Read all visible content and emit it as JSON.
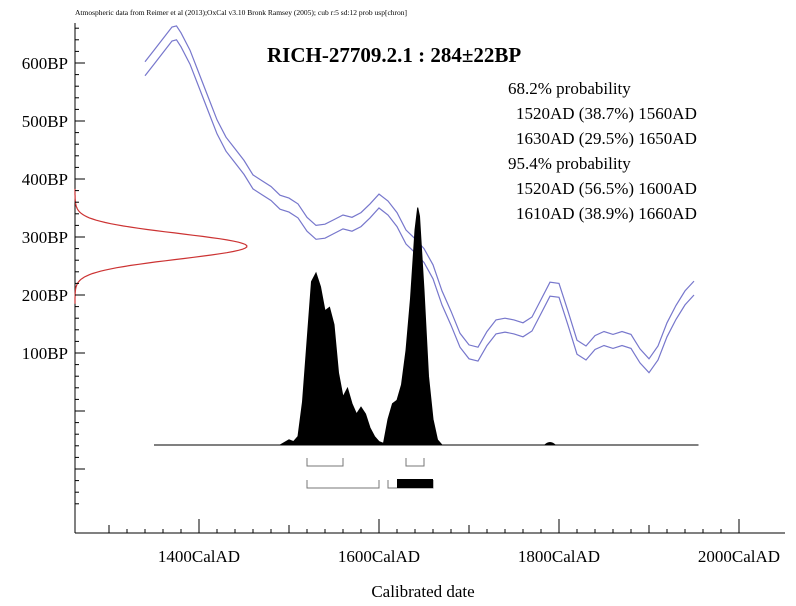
{
  "chart_data": {
    "type": "area",
    "credit": "Atmospheric data from Reimer et al (2013);OxCal v3.10 Bronk Ramsey (2005); cub r:5 sd:12 prob usp[chron]",
    "title": "RICH-27709.2.1 : 284±22BP",
    "xlabel": "Calibrated date",
    "ylabel": "",
    "xlim": [
      1260,
      2010
    ],
    "ylim": [
      -170,
      680
    ],
    "x_ticks": [
      {
        "value": 1400,
        "label": "1400CalAD"
      },
      {
        "value": 1600,
        "label": "1600CalAD"
      },
      {
        "value": 1800,
        "label": "1800CalAD"
      },
      {
        "value": 2000,
        "label": "2000CalAD"
      }
    ],
    "y_ticks": [
      {
        "value": 600,
        "label": "600BP"
      },
      {
        "value": 500,
        "label": "500BP"
      },
      {
        "value": 400,
        "label": "400BP"
      },
      {
        "value": 300,
        "label": "300BP"
      },
      {
        "value": 200,
        "label": "200BP"
      },
      {
        "value": 100,
        "label": "100BP"
      }
    ],
    "annotations": [
      {
        "label": "68.2% probability",
        "indent": false
      },
      {
        "label": "1520AD (38.7%) 1560AD",
        "indent": true
      },
      {
        "label": "1630AD (29.5%) 1650AD",
        "indent": true
      },
      {
        "label": "95.4% probability",
        "indent": false
      },
      {
        "label": "1520AD (56.5%) 1600AD",
        "indent": true
      },
      {
        "label": "1610AD (38.9%) 1660AD",
        "indent": true
      }
    ],
    "calibration_curve": {
      "color": "#7777cc",
      "x": [
        1340,
        1350,
        1360,
        1370,
        1375,
        1380,
        1390,
        1400,
        1410,
        1420,
        1430,
        1440,
        1450,
        1460,
        1470,
        1480,
        1490,
        1500,
        1510,
        1520,
        1530,
        1540,
        1550,
        1560,
        1570,
        1580,
        1590,
        1600,
        1610,
        1620,
        1630,
        1640,
        1650,
        1660,
        1670,
        1680,
        1690,
        1700,
        1710,
        1720,
        1730,
        1740,
        1750,
        1760,
        1770,
        1780,
        1790,
        1800,
        1810,
        1820,
        1830,
        1840,
        1850,
        1860,
        1870,
        1880,
        1890,
        1900,
        1910,
        1920,
        1930,
        1940,
        1950
      ],
      "y": [
        590,
        610,
        630,
        650,
        652,
        640,
        610,
        570,
        530,
        490,
        460,
        440,
        420,
        395,
        385,
        375,
        360,
        355,
        345,
        322,
        308,
        310,
        318,
        326,
        322,
        330,
        345,
        362,
        350,
        330,
        300,
        285,
        268,
        240,
        195,
        160,
        122,
        102,
        98,
        125,
        145,
        148,
        145,
        140,
        150,
        180,
        210,
        208,
        160,
        110,
        100,
        118,
        125,
        120,
        125,
        120,
        95,
        78,
        100,
        140,
        170,
        195,
        212
      ],
      "band": 12
    },
    "radiocarbon_distribution": {
      "color": "#cc3333",
      "mean": 284,
      "sd": 22
    },
    "calibrated_distribution": {
      "x": [
        1490,
        1500,
        1505,
        1510,
        1515,
        1520,
        1525,
        1530,
        1535,
        1540,
        1545,
        1550,
        1555,
        1560,
        1565,
        1570,
        1575,
        1580,
        1585,
        1590,
        1595,
        1600,
        1605,
        1610,
        1615,
        1620,
        1625,
        1630,
        1635,
        1640,
        1643,
        1645,
        1650,
        1655,
        1660,
        1665,
        1670
      ],
      "y": [
        0,
        0.03,
        0.02,
        0.05,
        0.25,
        0.6,
        0.95,
        1.0,
        0.92,
        0.78,
        0.8,
        0.7,
        0.42,
        0.28,
        0.33,
        0.24,
        0.18,
        0.22,
        0.18,
        0.1,
        0.05,
        0.02,
        0.01,
        0.15,
        0.24,
        0.26,
        0.35,
        0.55,
        0.85,
        1.25,
        1.38,
        1.33,
        0.9,
        0.4,
        0.15,
        0.03,
        0
      ],
      "extra_bump_x": 1790
    },
    "ranges_68": [
      [
        1520,
        1560
      ],
      [
        1630,
        1650
      ]
    ],
    "ranges_95": [
      [
        1520,
        1600
      ],
      [
        1610,
        1660
      ]
    ]
  }
}
